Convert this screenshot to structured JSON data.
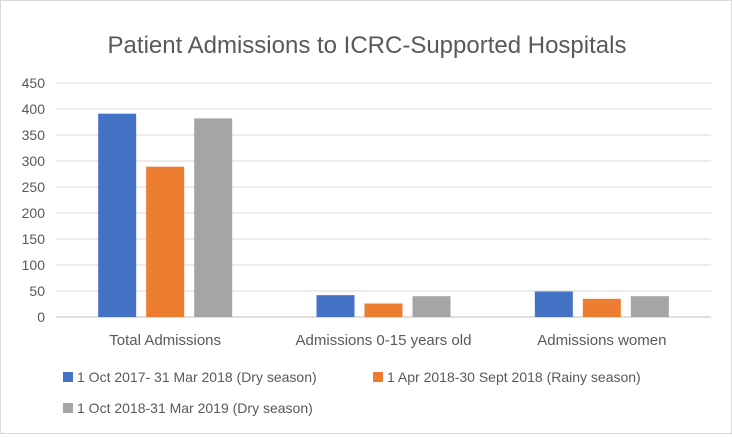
{
  "chart_data": {
    "type": "bar",
    "title": "Patient Admissions to ICRC-Supported Hospitals",
    "xlabel": "",
    "ylabel": "",
    "ylim": [
      0,
      450
    ],
    "yticks": [
      "0",
      "50",
      "100",
      "150",
      "200",
      "250",
      "300",
      "350",
      "400",
      "450"
    ],
    "grid": true,
    "legend_position": "bottom",
    "categories": [
      "Total Admissions",
      "Admissions 0-15 years old",
      "Admissions women"
    ],
    "series": [
      {
        "name": "1 Oct 2017- 31 Mar 2018 (Dry season)",
        "color": "#4472c4",
        "values": [
          391,
          42,
          49
        ]
      },
      {
        "name": "1 Apr 2018-30 Sept 2018 (Rainy season)",
        "color": "#ed7d31",
        "values": [
          289,
          26,
          35
        ]
      },
      {
        "name": "1 Oct 2018-31 Mar 2019 (Dry season)",
        "color": "#a5a5a5",
        "values": [
          382,
          40,
          40
        ]
      }
    ]
  }
}
